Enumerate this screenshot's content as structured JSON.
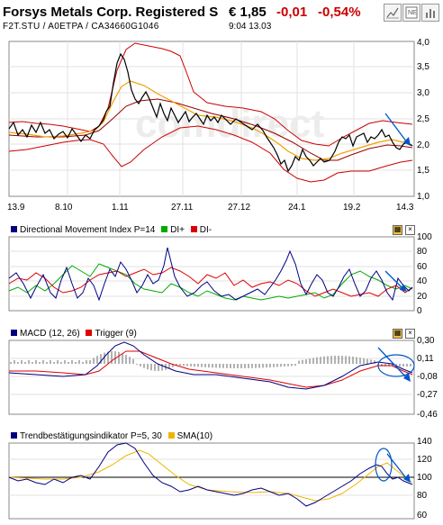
{
  "header": {
    "title": "Forsys Metals Corp. Registered S",
    "price": "€ 1,85",
    "change": "-0,01",
    "change_pct": "-0,54%",
    "symbols": "F2T.STU  /  A0ETPA  /  CA34660G1046",
    "time": "9:04   13.03",
    "colors": {
      "negative": "#cc0000"
    }
  },
  "toolbar": {
    "buttons": [
      "chart-icon",
      "news-icon",
      "bar-chart-icon"
    ]
  },
  "watermark": "comdirect",
  "price_chart": {
    "y_ticks": [
      "4,0",
      "3,5",
      "3,0",
      "2,5",
      "2,0",
      "1,5",
      "1,0"
    ],
    "x_ticks": [
      "13.9",
      "8.10",
      "1.11",
      "27.11",
      "27.12",
      "24.1",
      "19.2",
      "14.3"
    ]
  },
  "dmi_panel": {
    "legend_main": "Directional Movement Index P=14",
    "legend_plus": "DI+",
    "legend_minus": "DI-",
    "y_ticks": [
      "100",
      "80",
      "60",
      "40",
      "20",
      "0"
    ],
    "colors": {
      "adx": "#000080",
      "plus": "#00aa00",
      "minus": "#dd0000"
    }
  },
  "macd_panel": {
    "legend_main": "MACD (12, 26)",
    "legend_trigger": "Trigger (9)",
    "y_ticks": [
      "0,30",
      "0,11",
      "-0,08",
      "-0,27",
      "-0,46"
    ],
    "colors": {
      "macd": "#000080",
      "trigger": "#dd0000"
    }
  },
  "trend_panel": {
    "legend_main": "Trendbestätigungsindikator P=5, 30",
    "legend_sma": "SMA(10)",
    "y_ticks": [
      "140",
      "120",
      "100",
      "80",
      "60"
    ],
    "colors": {
      "tbi": "#000080",
      "sma": "#f0b400"
    }
  }
}
